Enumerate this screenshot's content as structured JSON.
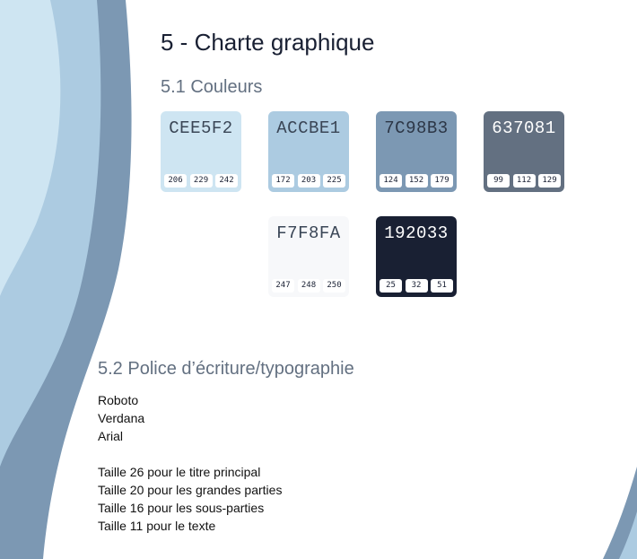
{
  "page": {
    "title": "5 - Charte graphique",
    "colors_heading": "5.1 Couleurs",
    "typography_heading": "5.2 Police d’écriture/typographie"
  },
  "swatches": [
    {
      "hex": "CEE5F2",
      "bg": "#CEE5F2",
      "text_color": "#3a4656",
      "rgb": [
        "206",
        "229",
        "242"
      ]
    },
    {
      "hex": "ACCBE1",
      "bg": "#ACCBE1",
      "text_color": "#3a4656",
      "rgb": [
        "172",
        "203",
        "225"
      ]
    },
    {
      "hex": "7C98B3",
      "bg": "#7C98B3",
      "text_color": "#2c3646",
      "rgb": [
        "124",
        "152",
        "179"
      ]
    },
    {
      "hex": "637081",
      "bg": "#637081",
      "text_color": "#ffffff",
      "rgb": [
        "99",
        "112",
        "129"
      ]
    },
    {
      "hex": "F7F8FA",
      "bg": "#F7F8FA",
      "text_color": "#3a4656",
      "rgb": [
        "247",
        "248",
        "250"
      ]
    },
    {
      "hex": "192033",
      "bg": "#192033",
      "text_color": "#ffffff",
      "rgb": [
        "25",
        "32",
        "51"
      ]
    }
  ],
  "fonts": [
    "Roboto",
    "Verdana",
    "Arial"
  ],
  "sizes": [
    "Taille 26 pour le titre principal",
    "Taille 20 pour les grandes parties",
    "Taille 16 pour les sous-parties",
    "Taille 11 pour le texte"
  ],
  "decor_colors": {
    "light": "#CEE5F2",
    "mid": "#ACCBE1",
    "dark": "#7C98B3"
  }
}
